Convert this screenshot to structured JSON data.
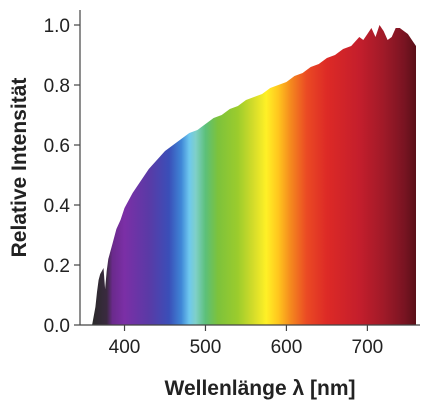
{
  "chart_data": {
    "type": "area",
    "title": "",
    "xlabel": "Wellenlänge λ [nm]",
    "ylabel": "Relative Intensität",
    "xlim": [
      345,
      765
    ],
    "ylim": [
      0,
      1.05
    ],
    "x_ticks": [
      400,
      500,
      600,
      700
    ],
    "y_ticks": [
      0.0,
      0.2,
      0.4,
      0.6,
      0.8,
      1.0
    ],
    "x_tick_labels": [
      "400",
      "500",
      "600",
      "700"
    ],
    "y_tick_labels": [
      "0.0",
      "0.2",
      "0.4",
      "0.6",
      "0.8",
      "1.0"
    ],
    "grid": false,
    "legend": "none",
    "fill": "visible-spectrum color gradient by wavelength",
    "series": [
      {
        "x": [
          360,
          364,
          366,
          368,
          370,
          372,
          374,
          376,
          378,
          380,
          385,
          390,
          395,
          400,
          410,
          420,
          430,
          440,
          450,
          460,
          470,
          480,
          490,
          500,
          510,
          520,
          530,
          540,
          550,
          560,
          570,
          580,
          590,
          600,
          610,
          620,
          630,
          640,
          650,
          660,
          670,
          680,
          690,
          695,
          700,
          705,
          710,
          715,
          720,
          725,
          730,
          735,
          740,
          745,
          750,
          755,
          760
        ],
        "y": [
          0.0,
          0.06,
          0.11,
          0.15,
          0.17,
          0.18,
          0.19,
          0.12,
          0.18,
          0.22,
          0.27,
          0.32,
          0.35,
          0.39,
          0.44,
          0.48,
          0.52,
          0.55,
          0.58,
          0.6,
          0.62,
          0.64,
          0.65,
          0.67,
          0.69,
          0.7,
          0.72,
          0.73,
          0.75,
          0.76,
          0.77,
          0.79,
          0.8,
          0.81,
          0.83,
          0.84,
          0.86,
          0.87,
          0.89,
          0.9,
          0.92,
          0.93,
          0.96,
          0.95,
          0.97,
          0.99,
          0.96,
          1.0,
          0.98,
          0.95,
          0.96,
          0.99,
          0.99,
          0.98,
          0.97,
          0.95,
          0.93
        ]
      }
    ]
  }
}
